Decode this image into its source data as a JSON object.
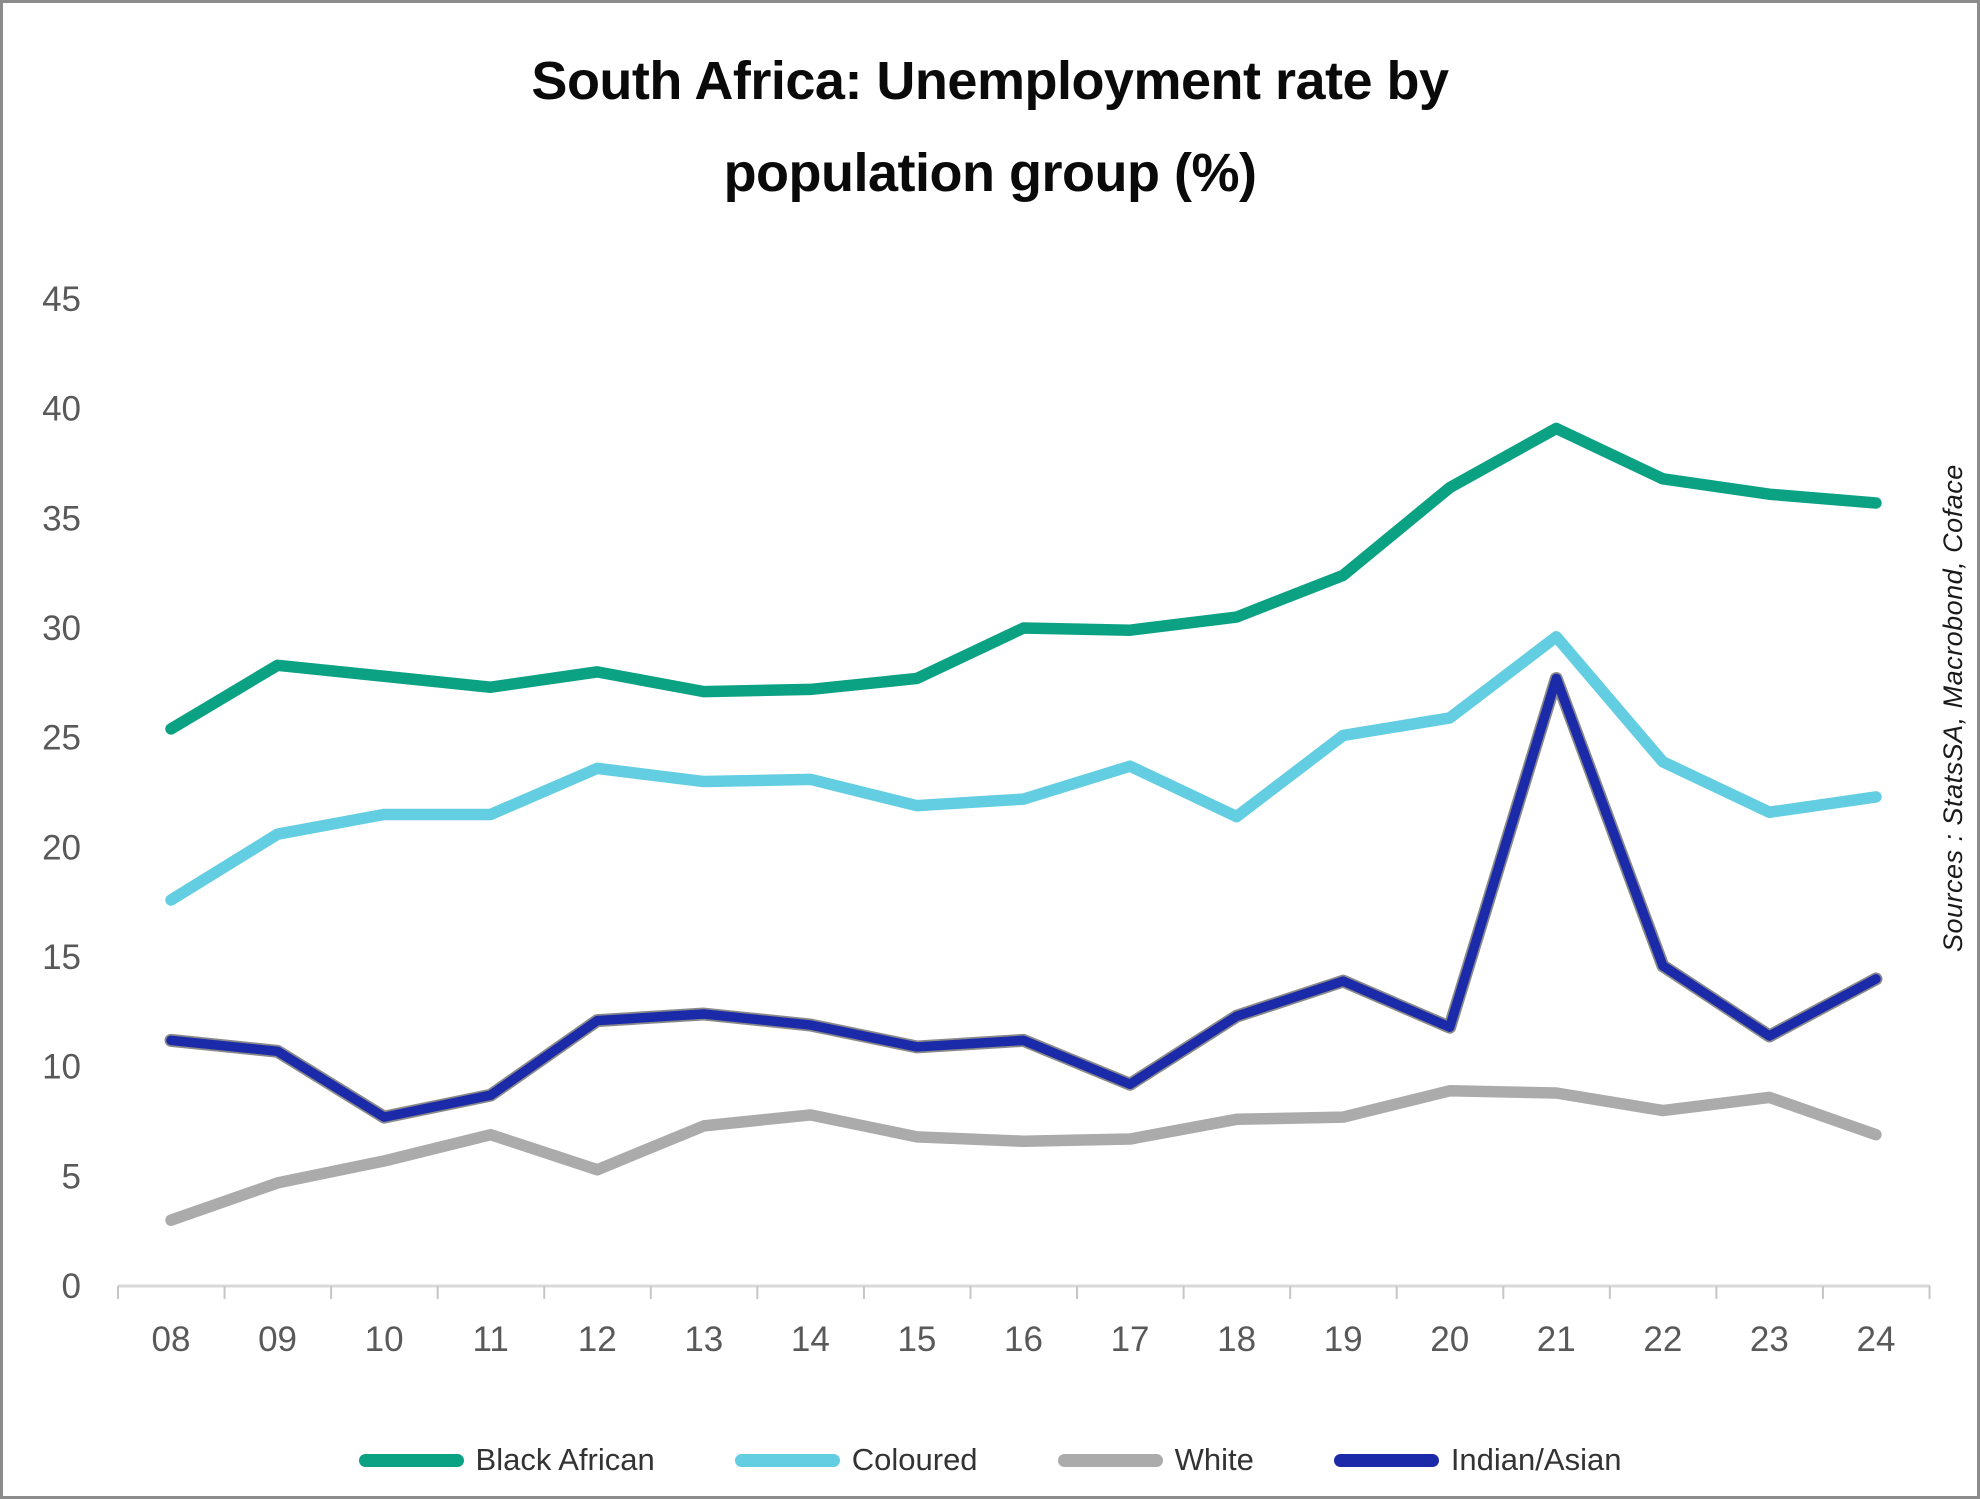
{
  "title": {
    "line1": "South Africa: Unemployment rate by",
    "line2": "population group (%)"
  },
  "source_note": "Sources : StatsSA, Macrobond, Coface",
  "chart_data": {
    "type": "line",
    "title": "South Africa: Unemployment rate by population group (%)",
    "xlabel": "",
    "ylabel": "",
    "ylim": [
      0,
      45
    ],
    "ytick_step": 5,
    "grid": false,
    "legend_position": "bottom",
    "y_tick_labels": [
      "0",
      "5",
      "10",
      "15",
      "20",
      "25",
      "30",
      "35",
      "40",
      "45"
    ],
    "categories": [
      "08",
      "09",
      "10",
      "11",
      "12",
      "13",
      "14",
      "15",
      "16",
      "17",
      "18",
      "19",
      "20",
      "21",
      "22",
      "23",
      "24"
    ],
    "series": [
      {
        "name": "Black African",
        "color": "#0ba183",
        "values": [
          25.4,
          28.3,
          27.8,
          27.3,
          28.0,
          27.1,
          27.2,
          27.7,
          30.0,
          29.9,
          30.5,
          32.4,
          36.4,
          39.1,
          36.8,
          36.1,
          35.7
        ]
      },
      {
        "name": "Coloured",
        "color": "#63cde2",
        "values": [
          17.6,
          20.6,
          21.5,
          21.5,
          23.6,
          23.0,
          23.1,
          21.9,
          22.2,
          23.7,
          21.4,
          25.1,
          25.9,
          29.6,
          23.9,
          21.6,
          22.3
        ]
      },
      {
        "name": "White",
        "color": "#ababab",
        "values": [
          3.0,
          4.7,
          5.7,
          6.9,
          5.3,
          7.3,
          7.8,
          6.8,
          6.6,
          6.7,
          7.6,
          7.7,
          8.9,
          8.8,
          8.0,
          8.6,
          6.9
        ]
      },
      {
        "name": "Indian/Asian",
        "color": "#1b2aa8",
        "outline_color": "#8a8a8a",
        "values": [
          11.2,
          10.7,
          7.7,
          8.7,
          12.1,
          12.4,
          11.9,
          10.9,
          11.2,
          9.2,
          12.3,
          13.9,
          11.8,
          27.7,
          14.6,
          11.4,
          14.0
        ]
      }
    ]
  }
}
